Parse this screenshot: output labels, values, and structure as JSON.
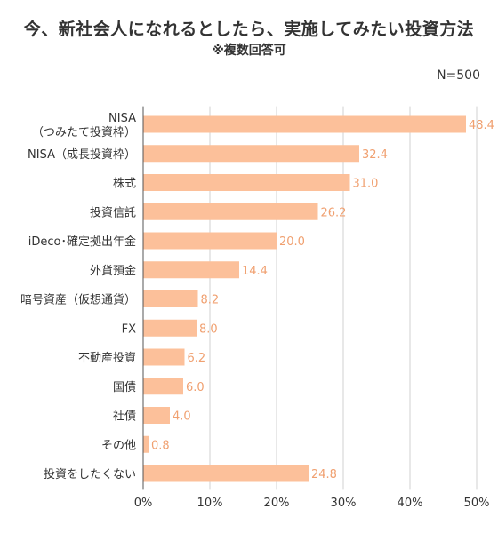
{
  "header": {
    "title": "今、新社会人になれるとしたら、実施してみたい投資方法",
    "subtitle": "※複数回答可",
    "sample_size": "N=500"
  },
  "colors": {
    "bar": "#fcc09a",
    "value_text": "#f0a070",
    "gridline": "#d0d0d0",
    "axis": "#555555"
  },
  "chart_data": {
    "type": "bar",
    "orientation": "horizontal",
    "categories": [
      [
        "NISA",
        "（つみたて投資枠）"
      ],
      [
        "NISA（成長投資枠）"
      ],
      [
        "株式"
      ],
      [
        "投資信託"
      ],
      [
        "iDeco･確定拠出年金"
      ],
      [
        "外貨預金"
      ],
      [
        "暗号資産（仮想通貨）"
      ],
      [
        "FX"
      ],
      [
        "不動産投資"
      ],
      [
        "国債"
      ],
      [
        "社債"
      ],
      [
        "その他"
      ],
      [
        "投資をしたくない"
      ]
    ],
    "values": [
      48.4,
      32.4,
      31.0,
      26.2,
      20.0,
      14.4,
      8.2,
      8.0,
      6.2,
      6.0,
      4.0,
      0.8,
      24.8
    ],
    "value_labels": [
      "48.4",
      "32.4",
      "31.0",
      "26.2",
      "20.0",
      "14.4",
      "8.2",
      "8.0",
      "6.2",
      "6.0",
      "4.0",
      "0.8",
      "24.8"
    ],
    "xlim": [
      0,
      50
    ],
    "xticks": [
      0,
      10,
      20,
      30,
      40,
      50
    ],
    "xtick_labels": [
      "0%",
      "10%",
      "20%",
      "30%",
      "40%",
      "50%"
    ],
    "grid": "vertical"
  }
}
